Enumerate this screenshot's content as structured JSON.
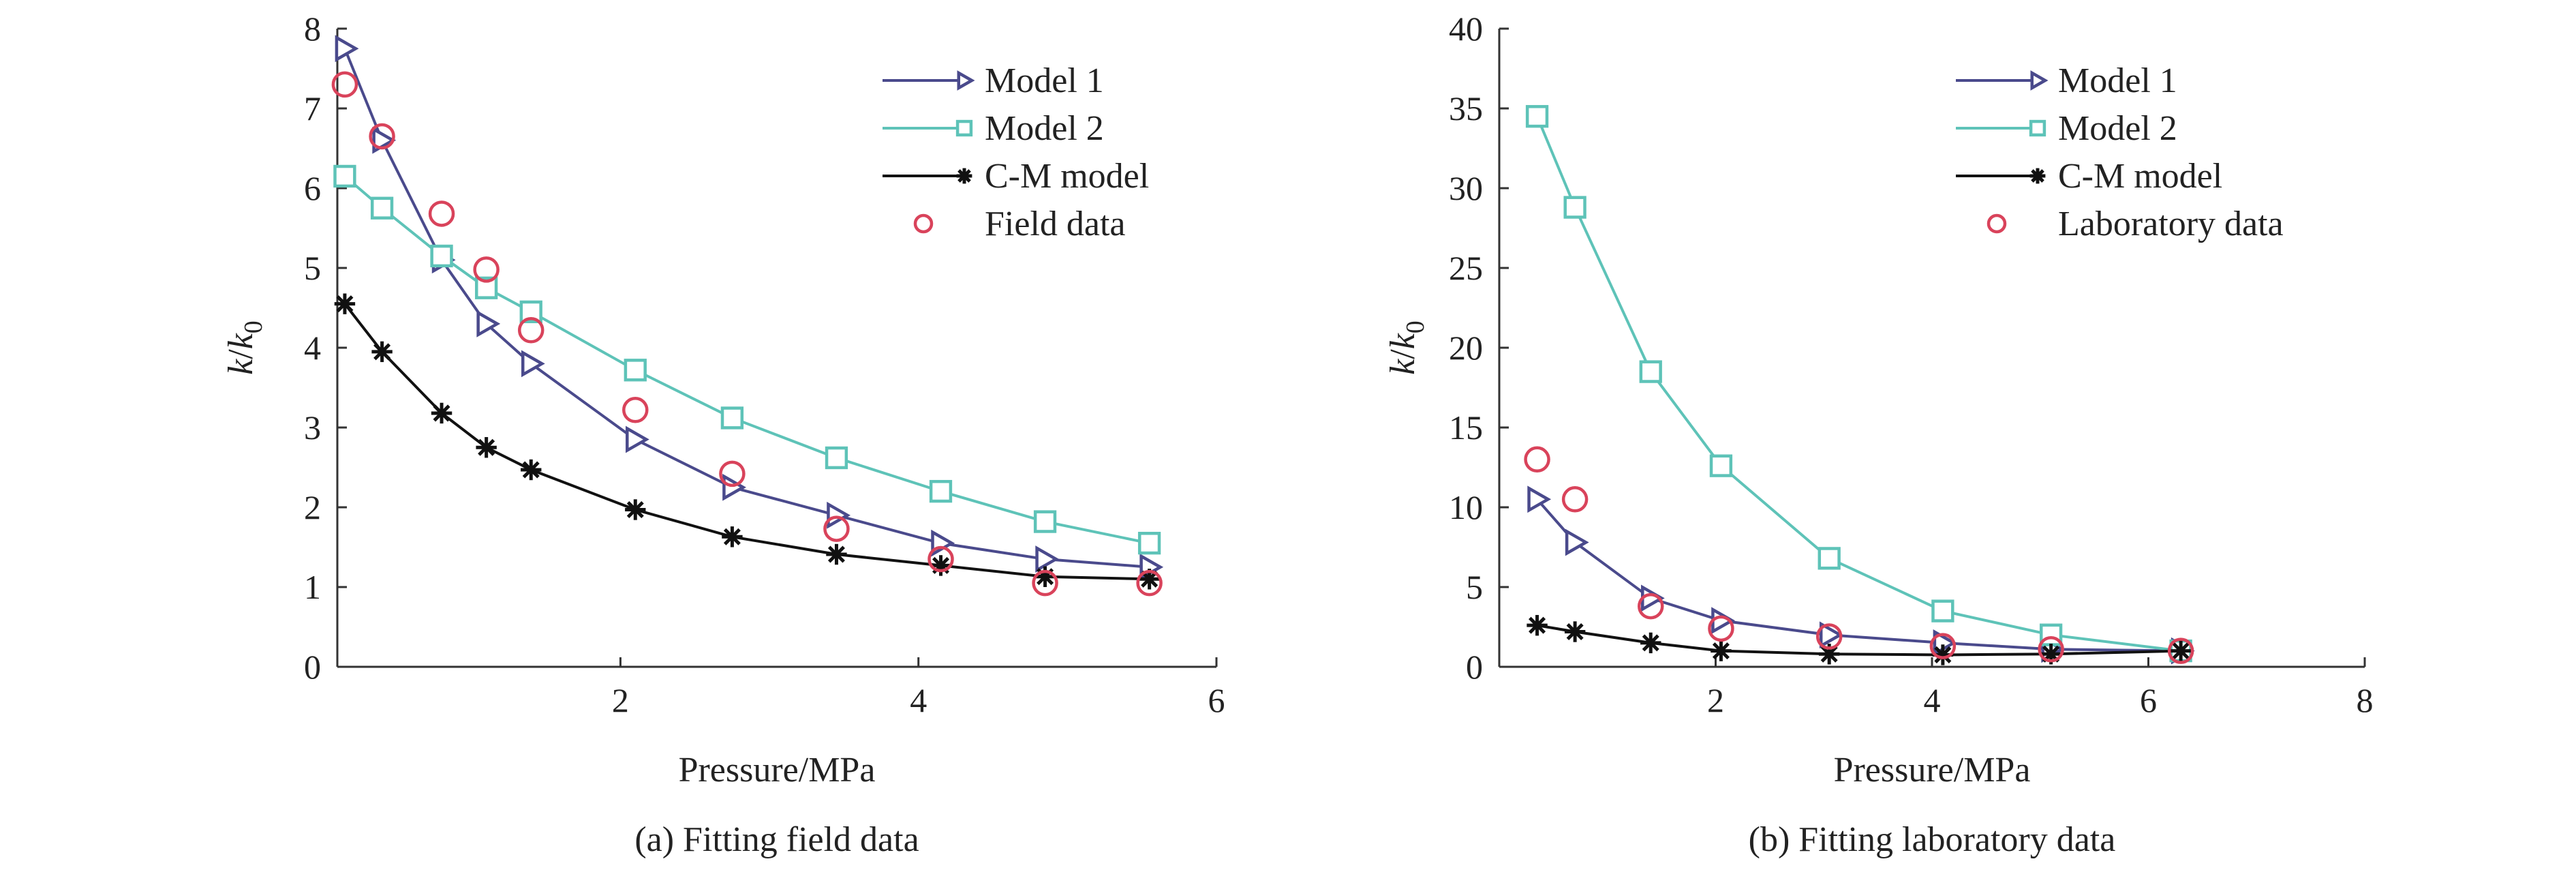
{
  "chart_data": [
    {
      "type": "line",
      "caption": "(a) Fitting field data",
      "xlabel": "Pressure/MPa",
      "ylabel_main": "k",
      "ylabel_sep": "/",
      "ylabel_sub_base": "k",
      "ylabel_sub": "0",
      "xlim": [
        0.1,
        6
      ],
      "ylim": [
        0,
        8
      ],
      "xticks": [
        2,
        4,
        6
      ],
      "yticks": [
        0,
        1,
        2,
        3,
        4,
        5,
        6,
        7,
        8
      ],
      "grid": false,
      "legend_position": "top-right",
      "series": [
        {
          "name": "Model 1",
          "color": "#4a4a8c",
          "marker": "triangle-right",
          "line": true,
          "x": [
            0.15,
            0.4,
            0.8,
            1.1,
            1.4,
            2.1,
            2.75,
            3.45,
            4.15,
            4.85,
            5.55
          ],
          "y": [
            7.75,
            6.6,
            5.1,
            4.3,
            3.8,
            2.85,
            2.25,
            1.9,
            1.55,
            1.35,
            1.25
          ]
        },
        {
          "name": "Model 2",
          "color": "#5ec3b8",
          "marker": "square",
          "line": true,
          "x": [
            0.15,
            0.4,
            0.8,
            1.1,
            1.4,
            2.1,
            2.75,
            3.45,
            4.15,
            4.85,
            5.55
          ],
          "y": [
            6.15,
            5.75,
            5.15,
            4.75,
            4.45,
            3.72,
            3.12,
            2.62,
            2.2,
            1.82,
            1.55
          ]
        },
        {
          "name": "C-M model",
          "color": "#111111",
          "marker": "asterisk",
          "line": true,
          "x": [
            0.15,
            0.4,
            0.8,
            1.1,
            1.4,
            2.1,
            2.75,
            3.45,
            4.15,
            4.85,
            5.55
          ],
          "y": [
            4.55,
            3.95,
            3.18,
            2.75,
            2.47,
            1.97,
            1.63,
            1.41,
            1.27,
            1.13,
            1.1
          ]
        },
        {
          "name": "Field data",
          "color": "#d9435b",
          "marker": "circle",
          "line": false,
          "x": [
            0.15,
            0.4,
            0.8,
            1.1,
            1.4,
            2.1,
            2.75,
            3.45,
            4.15,
            4.85,
            5.55
          ],
          "y": [
            7.3,
            6.65,
            5.68,
            4.98,
            4.22,
            3.22,
            2.42,
            1.73,
            1.35,
            1.05,
            1.05
          ]
        }
      ]
    },
    {
      "type": "line",
      "caption": "(b) Fitting laboratory data",
      "xlabel": "Pressure/MPa",
      "ylabel_main": "k",
      "ylabel_sep": "/",
      "ylabel_sub_base": "k",
      "ylabel_sub": "0",
      "xlim": [
        0,
        8
      ],
      "ylim": [
        0,
        40
      ],
      "xticks": [
        2,
        4,
        6,
        8
      ],
      "yticks": [
        0,
        5,
        10,
        15,
        20,
        25,
        30,
        35,
        40
      ],
      "grid": false,
      "legend_position": "top-right",
      "series": [
        {
          "name": "Model 1",
          "color": "#4a4a8c",
          "marker": "triangle-right",
          "line": true,
          "x": [
            0.35,
            0.7,
            1.4,
            2.05,
            3.05,
            4.1,
            5.1,
            6.3
          ],
          "y": [
            10.5,
            7.8,
            4.3,
            2.9,
            2.0,
            1.5,
            1.1,
            1.0
          ]
        },
        {
          "name": "Model 2",
          "color": "#5ec3b8",
          "marker": "square",
          "line": true,
          "x": [
            0.35,
            0.7,
            1.4,
            2.05,
            3.05,
            4.1,
            5.1,
            6.3
          ],
          "y": [
            34.5,
            28.8,
            18.5,
            12.6,
            6.8,
            3.5,
            2.0,
            1.0
          ]
        },
        {
          "name": "C-M model",
          "color": "#111111",
          "marker": "asterisk",
          "line": true,
          "x": [
            0.35,
            0.7,
            1.4,
            2.05,
            3.05,
            4.1,
            5.1,
            6.3
          ],
          "y": [
            2.6,
            2.2,
            1.5,
            1.0,
            0.8,
            0.75,
            0.8,
            1.0
          ]
        },
        {
          "name": "Laboratory data",
          "color": "#d9435b",
          "marker": "circle",
          "line": false,
          "x": [
            0.35,
            0.7,
            1.4,
            2.05,
            3.05,
            4.1,
            5.1,
            6.3
          ],
          "y": [
            13.0,
            10.5,
            3.8,
            2.4,
            1.9,
            1.3,
            1.1,
            1.0
          ]
        }
      ]
    }
  ]
}
